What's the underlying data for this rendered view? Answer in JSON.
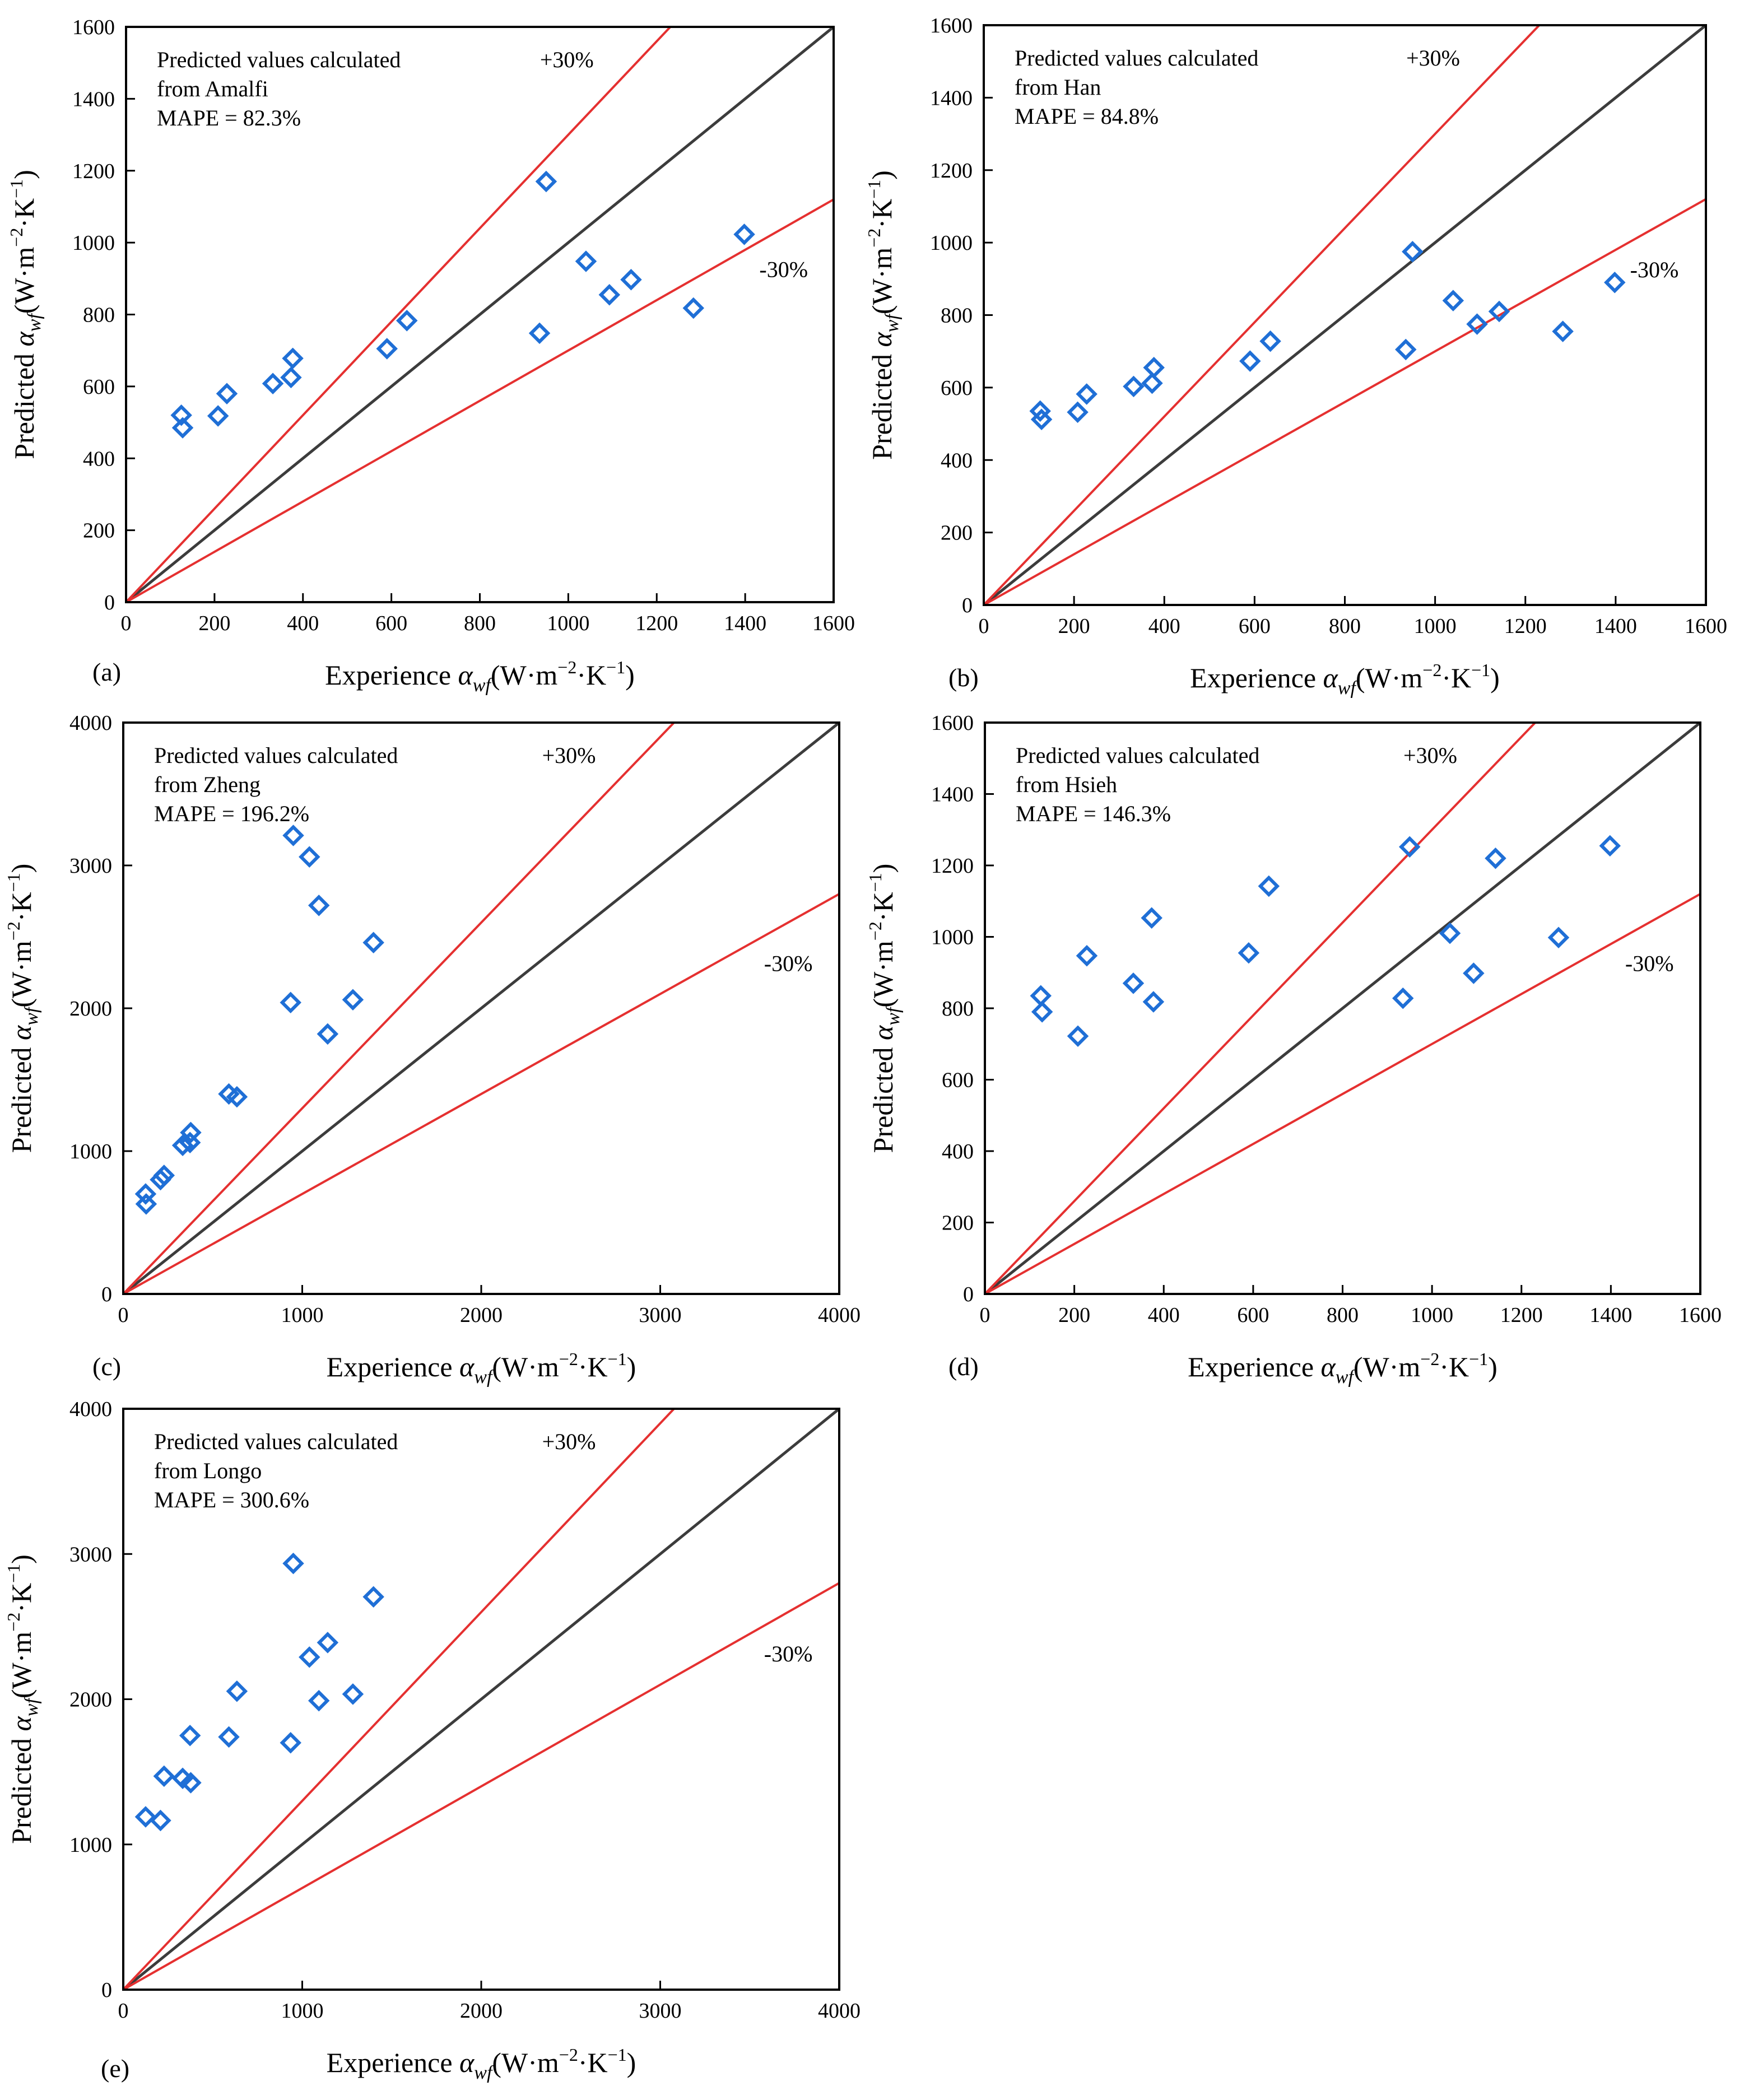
{
  "figure": {
    "x_label_prefix": "Experience ",
    "y_label_prefix": "Predicted ",
    "symbol": "α",
    "symbol_sub": "wf",
    "unit_text": "(W·m",
    "unit_exp1": "−2",
    "unit_mid": "·K",
    "unit_exp2": "−1",
    "unit_close": ")"
  },
  "chart_data": [
    {
      "type": "scatter",
      "panel_label": "(a)",
      "title_lines": [
        "Predicted values calculated",
        "from Amalfi",
        "MAPE = 82.3%"
      ],
      "plus_label": "+30%",
      "minus_label": "-30%",
      "xlim": [
        0,
        1600
      ],
      "ylim": [
        0,
        1600
      ],
      "xticks": [
        0,
        200,
        400,
        600,
        800,
        1000,
        1200,
        1400,
        1600
      ],
      "yticks": [
        0,
        200,
        400,
        600,
        800,
        1000,
        1200,
        1400,
        1600
      ],
      "x": [
        125,
        128,
        208,
        228,
        332,
        373,
        377,
        590,
        635,
        935,
        950,
        1040,
        1093,
        1142,
        1283,
        1398
      ],
      "y": [
        520,
        485,
        518,
        580,
        608,
        625,
        678,
        705,
        783,
        748,
        1170,
        948,
        855,
        897,
        818,
        1023
      ],
      "reference_lines": [
        "y = x",
        "y = 1.3x",
        "y = 0.7x"
      ],
      "grid": false
    },
    {
      "type": "scatter",
      "panel_label": "(b)",
      "title_lines": [
        "Predicted values calculated",
        "from Han",
        "MAPE = 84.8%"
      ],
      "plus_label": "+30%",
      "minus_label": "-30%",
      "xlim": [
        0,
        1600
      ],
      "ylim": [
        0,
        1600
      ],
      "xticks": [
        0,
        200,
        400,
        600,
        800,
        1000,
        1200,
        1400,
        1600
      ],
      "yticks": [
        0,
        200,
        400,
        600,
        800,
        1000,
        1200,
        1400,
        1600
      ],
      "x": [
        125,
        128,
        208,
        228,
        332,
        373,
        377,
        590,
        635,
        935,
        950,
        1040,
        1093,
        1142,
        1283,
        1398
      ],
      "y": [
        535,
        512,
        532,
        582,
        603,
        612,
        655,
        673,
        728,
        705,
        975,
        840,
        775,
        810,
        755,
        890
      ],
      "reference_lines": [
        "y = x",
        "y = 1.3x",
        "y = 0.7x"
      ],
      "grid": false
    },
    {
      "type": "scatter",
      "panel_label": "(c)",
      "title_lines": [
        "Predicted values calculated",
        "from Zheng",
        "MAPE = 196.2%"
      ],
      "plus_label": "+30%",
      "minus_label": "-30%",
      "xlim": [
        0,
        4000
      ],
      "ylim": [
        0,
        4000
      ],
      "xticks": [
        0,
        1000,
        2000,
        3000,
        4000
      ],
      "yticks": [
        0,
        1000,
        2000,
        3000,
        4000
      ],
      "x": [
        125,
        128,
        208,
        228,
        332,
        373,
        377,
        590,
        635,
        935,
        950,
        1040,
        1093,
        1142,
        1283,
        1398
      ],
      "y": [
        700,
        630,
        800,
        830,
        1040,
        1060,
        1130,
        1400,
        1380,
        2040,
        3210,
        3060,
        2720,
        1820,
        2060,
        2460
      ],
      "reference_lines": [
        "y = x",
        "y = 1.3x",
        "y = 0.7x"
      ],
      "grid": false
    },
    {
      "type": "scatter",
      "panel_label": "(d)",
      "title_lines": [
        "Predicted values calculated",
        "from Hsieh",
        "MAPE = 146.3%"
      ],
      "plus_label": "+30%",
      "minus_label": "-30%",
      "xlim": [
        0,
        1600
      ],
      "ylim": [
        0,
        1600
      ],
      "xticks": [
        0,
        200,
        400,
        600,
        800,
        1000,
        1200,
        1400,
        1600
      ],
      "yticks": [
        0,
        200,
        400,
        600,
        800,
        1000,
        1200,
        1400,
        1600
      ],
      "x": [
        125,
        128,
        208,
        228,
        332,
        373,
        377,
        590,
        635,
        935,
        950,
        1040,
        1093,
        1142,
        1283,
        1398
      ],
      "y": [
        835,
        790,
        722,
        947,
        870,
        1053,
        818,
        955,
        1142,
        828,
        1252,
        1010,
        898,
        1220,
        998,
        1255
      ],
      "reference_lines": [
        "y = x",
        "y = 1.3x",
        "y = 0.7x"
      ],
      "grid": false
    },
    {
      "type": "scatter",
      "panel_label": "(e)",
      "title_lines": [
        "Predicted values calculated",
        "from  Longo",
        "MAPE = 300.6%"
      ],
      "plus_label": "+30%",
      "minus_label": "-30%",
      "xlim": [
        0,
        4000
      ],
      "ylim": [
        0,
        4000
      ],
      "xticks": [
        0,
        1000,
        2000,
        3000,
        4000
      ],
      "yticks": [
        0,
        1000,
        2000,
        3000,
        4000
      ],
      "x": [
        125,
        208,
        228,
        332,
        373,
        377,
        590,
        635,
        935,
        950,
        1040,
        1093,
        1142,
        1283,
        1398
      ],
      "y": [
        1190,
        1165,
        1470,
        1455,
        1750,
        1425,
        1740,
        2055,
        1700,
        2935,
        2290,
        1990,
        2390,
        2035,
        2705
      ],
      "reference_lines": [
        "y = x",
        "y = 1.3x",
        "y = 0.7x"
      ],
      "grid": false
    }
  ]
}
